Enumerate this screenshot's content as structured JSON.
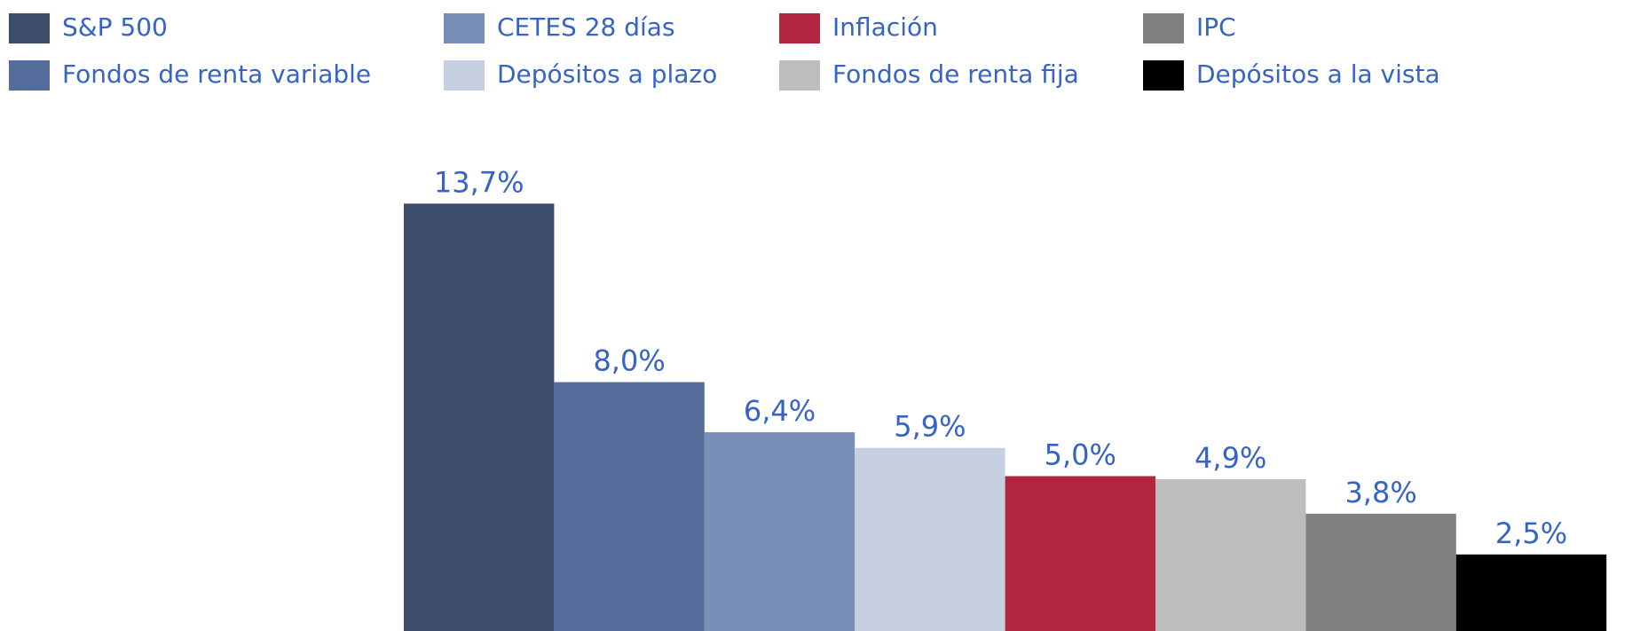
{
  "chart_data": {
    "type": "bar",
    "series": [
      {
        "name": "S&P 500",
        "color": "#3b4d6b",
        "values": [
          13.7
        ],
        "value_labels": [
          "13,7%"
        ]
      },
      {
        "name": "Fondos de renta variable",
        "color": "#536c99",
        "values": [
          8.0
        ],
        "value_labels": [
          "8,0%"
        ]
      },
      {
        "name": "CETES 28 días",
        "color": "#788eb7",
        "values": [
          6.4
        ],
        "value_labels": [
          "6,4%"
        ]
      },
      {
        "name": "Depósitos a plazo",
        "color": "#c5cfe0",
        "values": [
          5.9
        ],
        "value_labels": [
          "5,9%"
        ]
      },
      {
        "name": "Inflación",
        "color": "#b3263f",
        "values": [
          5.0
        ],
        "value_labels": [
          "5,0%"
        ]
      },
      {
        "name": "Fondos de renta fija",
        "color": "#bdbdbd",
        "values": [
          4.9
        ],
        "value_labels": [
          "4,9%"
        ]
      },
      {
        "name": "IPC",
        "color": "#808080",
        "values": [
          3.8
        ],
        "value_labels": [
          "3,8%"
        ]
      },
      {
        "name": "Depósitos a la vista",
        "color": "#000000",
        "values": [
          2.5
        ],
        "value_labels": [
          "2,5%"
        ]
      }
    ]
  }
}
